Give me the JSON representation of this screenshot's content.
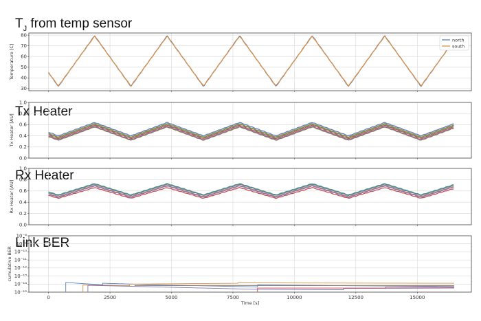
{
  "chart_data": [
    {
      "type": "line",
      "title": "T",
      "title_sub": "J",
      "title_rest": " from temp sensor",
      "xlabel": "",
      "ylabel": "Temperature [C]",
      "xlim": [
        -800,
        17200
      ],
      "ylim": [
        28,
        82
      ],
      "yticks": [
        30,
        40,
        50,
        60,
        70,
        80
      ],
      "grid": true,
      "legend": "top-right",
      "period": 2950,
      "t_offset": 400,
      "series": [
        {
          "name": "north",
          "color": "#5b7fbf",
          "min": 32,
          "max": 79.5
        },
        {
          "name": "south",
          "color": "#d9924a",
          "min": 32.5,
          "max": 79
        }
      ]
    },
    {
      "type": "line",
      "title": "Tx Heater",
      "xlabel": "",
      "ylabel": "Tx Heater [AU]",
      "xlim": [
        -800,
        17200
      ],
      "ylim": [
        0.0,
        1.0
      ],
      "yticks": [
        0.0,
        0.2,
        0.4,
        0.6,
        0.8,
        1.0
      ],
      "ytick_labels": [
        "0.0",
        "0.2",
        "0.4",
        "0.6",
        "0.8",
        "1.0"
      ],
      "grid": true,
      "period": 2950,
      "t_offset": 400,
      "series": [
        {
          "color": "#5b7fbf",
          "min": 0.4,
          "max": 0.64
        },
        {
          "color": "#d9924a",
          "min": 0.38,
          "max": 0.62
        },
        {
          "color": "#4e9a5c",
          "min": 0.37,
          "max": 0.61
        },
        {
          "color": "#c44e52",
          "min": 0.35,
          "max": 0.59
        },
        {
          "color": "#8172b2",
          "min": 0.33,
          "max": 0.57
        },
        {
          "color": "#937860",
          "min": 0.32,
          "max": 0.56
        }
      ]
    },
    {
      "type": "line",
      "title": "Rx Heater",
      "xlabel": "",
      "ylabel": "Rx Heater [AU]",
      "xlim": [
        -800,
        17200
      ],
      "ylim": [
        0.0,
        1.0
      ],
      "yticks": [
        0.0,
        0.2,
        0.4,
        0.6,
        0.8,
        1.0
      ],
      "ytick_labels": [
        "0.0",
        "0.2",
        "0.4",
        "0.6",
        "0.8",
        "1.0"
      ],
      "grid": true,
      "period": 2950,
      "t_offset": 400,
      "series": [
        {
          "color": "#4e9a5c",
          "min": 0.53,
          "max": 0.73
        },
        {
          "color": "#5b7fbf",
          "min": 0.52,
          "max": 0.72
        },
        {
          "color": "#d9924a",
          "min": 0.5,
          "max": 0.7
        },
        {
          "color": "#8172b2",
          "min": 0.49,
          "max": 0.69
        },
        {
          "color": "#c44e52",
          "min": 0.47,
          "max": 0.66
        }
      ]
    },
    {
      "type": "line",
      "title": "Link BER",
      "xlabel": "Time [s]",
      "ylabel": "cumulative BER",
      "xlim": [
        -800,
        17200
      ],
      "ylim": [
        -15,
        -8
      ],
      "log_y": true,
      "yticks": [
        -15,
        -14,
        -13,
        -12,
        -11,
        -10,
        -9,
        -8
      ],
      "ytick_labels": [
        "10⁻¹⁵",
        "10⁻¹⁴",
        "10⁻¹³",
        "10⁻¹²",
        "10⁻¹¹",
        "10⁻¹⁰",
        "10⁻⁹",
        "10⁻⁸"
      ],
      "xticks": [
        0,
        2500,
        5000,
        7500,
        10000,
        12500,
        15000
      ],
      "xtick_labels": [
        "0",
        "2500",
        "5000",
        "7500",
        "10000",
        "12500",
        "15000"
      ],
      "grid": true,
      "series": [
        {
          "color": "#5b7fbf",
          "points": [
            [
              700,
              -15
            ],
            [
              700,
              -13.8
            ],
            [
              2200,
              -14.1
            ],
            [
              2200,
              -13.9
            ],
            [
              4500,
              -14.1
            ],
            [
              8500,
              -14.35
            ],
            [
              8500,
              -14.1
            ],
            [
              12000,
              -14.2
            ],
            [
              16500,
              -14.3
            ]
          ]
        },
        {
          "color": "#d9924a",
          "points": [
            [
              1400,
              -15
            ],
            [
              1400,
              -14.1
            ],
            [
              3300,
              -14.2
            ],
            [
              3300,
              -14.0
            ],
            [
              7700,
              -13.9
            ],
            [
              7700,
              -13.85
            ],
            [
              16500,
              -13.9
            ]
          ]
        },
        {
          "color": "#8172b2",
          "points": [
            [
              1600,
              -15
            ],
            [
              1600,
              -14.15
            ],
            [
              8500,
              -14.65
            ],
            [
              12000,
              -14.7
            ],
            [
              12000,
              -14.55
            ],
            [
              16500,
              -14.5
            ]
          ]
        },
        {
          "color": "#c44e52",
          "points": [
            [
              8500,
              -15
            ],
            [
              8500,
              -14.5
            ],
            [
              13700,
              -14.5
            ],
            [
              13700,
              -14.4
            ],
            [
              16500,
              -14.4
            ]
          ]
        },
        {
          "color": "#937860",
          "points": [
            [
              3500,
              -14.2
            ],
            [
              6000,
              -14.2
            ],
            [
              16500,
              -14.2
            ]
          ]
        }
      ]
    }
  ]
}
